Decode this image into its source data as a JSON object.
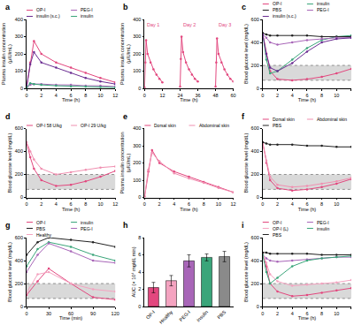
{
  "chart_data": [
    {
      "type": "line",
      "title": "a",
      "x_label": "Time (h)",
      "y_label": "Plasma insulin concentration\n(μIU/mL)",
      "x": [
        0,
        0.5,
        1,
        2,
        4,
        6,
        8,
        10,
        12
      ],
      "series": [
        {
          "name": "OP-I",
          "color": "#e2477e",
          "values": [
            5,
            150,
            275,
            200,
            150,
            120,
            90,
            60,
            35
          ]
        },
        {
          "name": "PEG-I",
          "color": "#a866b8",
          "values": [
            5,
            20,
            25,
            25,
            20,
            20,
            15,
            15,
            10
          ]
        },
        {
          "name": "insulin (s.c.)",
          "color": "#6a2c91",
          "values": [
            5,
            140,
            210,
            150,
            120,
            90,
            60,
            40,
            25
          ]
        },
        {
          "name": "insulin",
          "color": "#3aa57a",
          "values": [
            5,
            30,
            25,
            20,
            15,
            12,
            10,
            8,
            5
          ]
        }
      ],
      "xlim": [
        0,
        12
      ],
      "xticks": [
        0,
        2,
        4,
        6,
        8,
        10,
        12
      ],
      "ylim": [
        0,
        400
      ],
      "yticks": [
        0,
        100,
        200,
        300,
        400
      ]
    },
    {
      "type": "line",
      "title": "b",
      "x_label": "Time (h)",
      "y_label": "Plasma insulin concentration\n(μIU/mL)",
      "x": [
        0,
        0.5,
        1,
        2,
        4,
        6,
        8,
        10,
        12,
        18,
        24,
        24.5,
        25,
        26,
        28,
        30,
        32,
        34,
        36,
        42,
        48,
        48.5,
        49,
        50,
        52,
        54,
        56,
        58,
        60
      ],
      "series": [
        {
          "color": "#e2477e",
          "values": [
            5,
            150,
            280,
            200,
            150,
            110,
            80,
            55,
            35,
            null,
            10,
            170,
            300,
            210,
            150,
            110,
            80,
            55,
            40,
            null,
            10,
            150,
            290,
            200,
            150,
            110,
            80,
            55,
            40
          ]
        }
      ],
      "annotations": [
        {
          "text": "Day 1",
          "x": 6,
          "y": 370
        },
        {
          "text": "Day 2",
          "x": 30,
          "y": 370
        },
        {
          "text": "Day 3",
          "x": 54,
          "y": 370
        }
      ],
      "xlim": [
        0,
        60
      ],
      "xticks": [
        0,
        12,
        24,
        36,
        48,
        60
      ],
      "ylim": [
        0,
        400
      ],
      "yticks": [
        0,
        100,
        200,
        300,
        400
      ]
    },
    {
      "type": "line",
      "title": "c",
      "x_label": "Time (h)",
      "y_label": "Blood glucose level (mg/dL)",
      "x": [
        0,
        0.5,
        1,
        2,
        4,
        6,
        8,
        10,
        12
      ],
      "series": [
        {
          "name": "OP-I",
          "color": "#e2477e",
          "values": [
            480,
            300,
            150,
            80,
            70,
            80,
            100,
            130,
            170
          ]
        },
        {
          "name": "insulin",
          "color": "#3aa57a",
          "values": [
            480,
            250,
            130,
            150,
            250,
            350,
            420,
            450,
            460
          ]
        },
        {
          "name": "PBS",
          "color": "#222222",
          "values": [
            480,
            470,
            460,
            460,
            460,
            460,
            450,
            450,
            450
          ]
        },
        {
          "name": "PEG-I",
          "color": "#a866b8",
          "values": [
            470,
            440,
            400,
            380,
            400,
            420,
            430,
            440,
            440
          ]
        },
        {
          "name": "insulin (s.c.)",
          "color": "#6a2c91",
          "values": [
            470,
            300,
            180,
            150,
            220,
            320,
            400,
            430,
            440
          ]
        }
      ],
      "band": [
        70,
        200
      ],
      "xlim": [
        0,
        12
      ],
      "xticks": [
        0,
        2,
        4,
        6,
        8,
        10,
        12
      ],
      "ylim": [
        0,
        600
      ],
      "yticks": [
        0,
        200,
        400,
        600
      ]
    },
    {
      "type": "line",
      "title": "d",
      "x_label": "Time (h)",
      "y_label": "Blood glucose level (mg/dL)",
      "x": [
        0,
        0.5,
        1,
        2,
        4,
        6,
        8,
        10,
        12
      ],
      "series": [
        {
          "name": "OP-I 58 U/kg",
          "color": "#e2477e",
          "values": [
            480,
            350,
            250,
            150,
            100,
            110,
            140,
            180,
            230
          ]
        },
        {
          "name": "OP-I 29 U/kg",
          "color": "#f08fb0",
          "values": [
            480,
            400,
            330,
            250,
            200,
            220,
            240,
            260,
            270
          ]
        }
      ],
      "band": [
        70,
        200
      ],
      "xlim": [
        0,
        12
      ],
      "xticks": [
        0,
        2,
        4,
        6,
        8,
        10,
        12
      ],
      "ylim": [
        0,
        600
      ],
      "yticks": [
        0,
        200,
        400,
        600
      ]
    },
    {
      "type": "line",
      "title": "e",
      "x_label": "Time (h)",
      "y_label": "Plasma insulin concentration\n(μIU/mL)",
      "x": [
        0,
        0.5,
        1,
        2,
        4,
        6,
        8,
        10,
        12
      ],
      "series": [
        {
          "name": "Dorsal skin",
          "color": "#e2477e",
          "values": [
            5,
            150,
            275,
            200,
            150,
            120,
            90,
            60,
            30
          ]
        },
        {
          "name": "Abdominal skin",
          "color": "#f08fb0",
          "values": [
            5,
            160,
            260,
            210,
            140,
            110,
            85,
            55,
            30
          ]
        }
      ],
      "xlim": [
        0,
        12
      ],
      "xticks": [
        0,
        2,
        4,
        6,
        8,
        10,
        12
      ],
      "ylim": [
        0,
        400
      ],
      "yticks": [
        0,
        100,
        200,
        300,
        400
      ]
    },
    {
      "type": "line",
      "title": "f",
      "x_label": "Time (h)",
      "y_label": "Blood glucose level (mg/dL)",
      "x": [
        0,
        0.5,
        1,
        2,
        4,
        6,
        8,
        10,
        12
      ],
      "series": [
        {
          "name": "Dorsal skin",
          "color": "#e2477e",
          "values": [
            480,
            300,
            150,
            80,
            60,
            70,
            90,
            120,
            160
          ]
        },
        {
          "name": "Abdominal skin",
          "color": "#f08fb0",
          "values": [
            470,
            320,
            180,
            110,
            90,
            100,
            120,
            140,
            170
          ]
        },
        {
          "name": "PBS",
          "color": "#222222",
          "values": [
            480,
            470,
            460,
            460,
            460,
            450,
            450,
            440,
            440
          ]
        }
      ],
      "band": [
        70,
        200
      ],
      "xlim": [
        0,
        12
      ],
      "xticks": [
        0,
        2,
        4,
        6,
        8,
        10,
        12
      ],
      "ylim": [
        0,
        600
      ],
      "yticks": [
        0,
        200,
        400,
        600
      ]
    },
    {
      "type": "line",
      "title": "g",
      "x_label": "Time (min)",
      "y_label": "Blood glucose level (mg/dL)",
      "x": [
        0,
        15,
        30,
        60,
        90,
        120
      ],
      "series": [
        {
          "name": "OP-I",
          "color": "#e2477e",
          "values": [
            100,
            220,
            330,
            200,
            80,
            60
          ]
        },
        {
          "name": "insulin",
          "color": "#3aa57a",
          "values": [
            350,
            500,
            560,
            520,
            450,
            400
          ]
        },
        {
          "name": "PBS",
          "color": "#222222",
          "values": [
            450,
            560,
            600,
            580,
            560,
            520
          ]
        },
        {
          "name": "PEG-I",
          "color": "#a866b8",
          "values": [
            300,
            450,
            550,
            480,
            400,
            380
          ]
        },
        {
          "name": "Healthy",
          "color": "#f4a3c0",
          "values": [
            120,
            280,
            300,
            200,
            150,
            130
          ]
        }
      ],
      "band": [
        70,
        200
      ],
      "xlim": [
        0,
        120
      ],
      "xticks": [
        0,
        30,
        60,
        90,
        120
      ],
      "ylim": [
        0,
        600
      ],
      "yticks": [
        0,
        200,
        400,
        600
      ]
    },
    {
      "type": "bar",
      "title": "h",
      "y_label": "AUC (× 10⁴ mg/dL min)",
      "categories": [
        "OP-I",
        "Healthy",
        "PEG-I",
        "insulin",
        "PBS"
      ],
      "values": [
        2.2,
        3.0,
        5.3,
        5.7,
        5.8
      ],
      "errors": [
        0.6,
        0.6,
        0.7,
        0.4,
        0.6
      ],
      "colors": [
        "#e2477e",
        "#f4a3c0",
        "#a866b8",
        "#3aa57a",
        "#8a8a8a"
      ],
      "ylim": [
        0,
        8
      ],
      "yticks": [
        0,
        2,
        4,
        6,
        8
      ]
    },
    {
      "type": "line",
      "title": "i",
      "x_label": "Time (h)",
      "y_label": "Blood glucose level (mg/dL)",
      "x": [
        0,
        0.5,
        1,
        2,
        4,
        6,
        8,
        10,
        12
      ],
      "series": [
        {
          "name": "OP-I",
          "color": "#e2477e",
          "values": [
            460,
            350,
            200,
            130,
            90,
            100,
            120,
            140,
            160
          ]
        },
        {
          "name": "PEG-I",
          "color": "#a866b8",
          "values": [
            450,
            420,
            400,
            390,
            400,
            410,
            420,
            430,
            430
          ]
        },
        {
          "name": "OP-I (L)",
          "color": "#f4a3c0",
          "values": [
            460,
            380,
            280,
            220,
            180,
            190,
            200,
            210,
            230
          ]
        },
        {
          "name": "insulin",
          "color": "#3aa57a",
          "values": [
            450,
            300,
            200,
            250,
            350,
            400,
            420,
            430,
            440
          ]
        },
        {
          "name": "PBS",
          "color": "#222222",
          "values": [
            470,
            470,
            460,
            460,
            460,
            460,
            450,
            450,
            450
          ]
        }
      ],
      "band": [
        70,
        200
      ],
      "xlim": [
        0,
        12
      ],
      "xticks": [
        0,
        2,
        4,
        6,
        8,
        10,
        12
      ],
      "ylim": [
        0,
        600
      ],
      "yticks": [
        0,
        200,
        400,
        600
      ]
    }
  ]
}
